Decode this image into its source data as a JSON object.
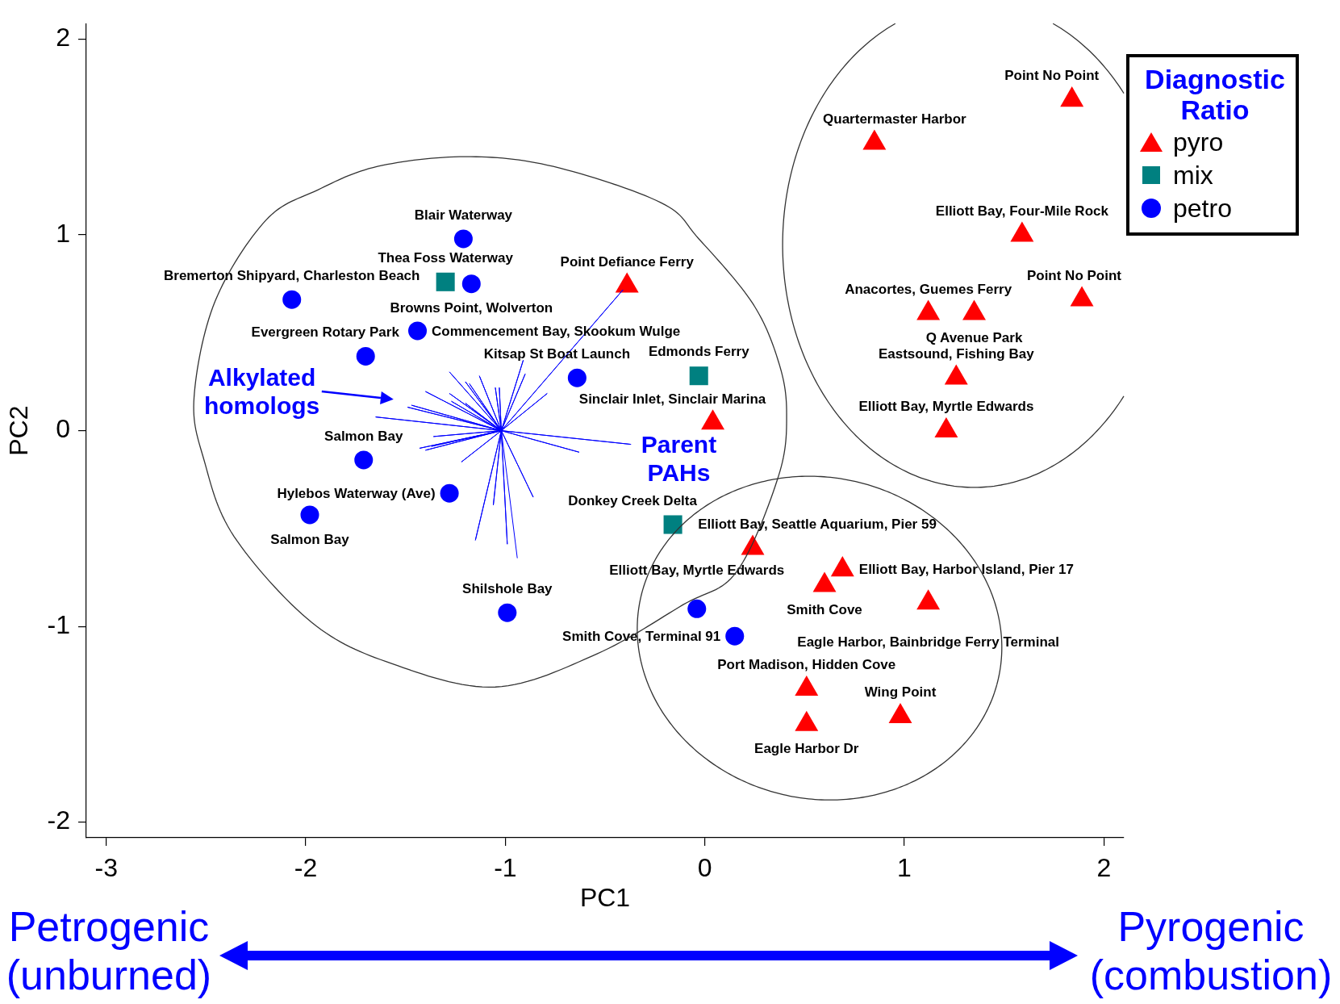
{
  "chart_data": {
    "type": "scatter",
    "xlabel": "PC1",
    "ylabel": "PC2",
    "legend": "top right",
    "legend_title": "Diagnostic Ratio",
    "xlim": [
      -3.1,
      2.1
    ],
    "ylim": [
      -2.08,
      2.08
    ],
    "xticks": [
      -3,
      -2,
      -1,
      0,
      1,
      2
    ],
    "yticks": [
      -2,
      -1,
      0,
      1,
      2
    ],
    "series": [
      {
        "name": "pyro",
        "color": "#ff0000",
        "marker": "triangle",
        "x": [
          1.84,
          0.85,
          1.59,
          1.89,
          1.12,
          1.35,
          1.26,
          1.21,
          -0.39,
          0.04,
          0.24,
          0.69,
          0.6,
          1.12,
          0.51,
          0.51,
          0.98
        ],
        "values": [
          1.69,
          1.47,
          1.0,
          0.67,
          0.6,
          0.6,
          0.27,
          0.0,
          0.74,
          0.04,
          -0.6,
          -0.71,
          -0.79,
          -0.88,
          -1.32,
          -1.5,
          -1.46
        ]
      },
      {
        "name": "mix",
        "color": "#008080",
        "marker": "square",
        "x": [
          -1.3,
          -0.03,
          -0.16
        ],
        "values": [
          0.76,
          0.28,
          -0.48
        ]
      },
      {
        "name": "petro",
        "color": "#0000ff",
        "marker": "circle",
        "x": [
          -1.21,
          -1.17,
          -2.07,
          -1.44,
          -1.7,
          -0.64,
          -1.71,
          -1.28,
          -1.98,
          -0.99,
          -0.04,
          0.15
        ],
        "values": [
          0.98,
          0.75,
          0.67,
          0.51,
          0.38,
          0.27,
          -0.15,
          -0.32,
          -0.43,
          -0.93,
          -0.91,
          -1.05
        ]
      },
      {
        "type": "line",
        "color": "#0000ff",
        "marker": "none",
        "x": [
          -1.02,
          -0.91,
          -1.02,
          -0.9,
          -1.02,
          -0.41,
          -1.02,
          -0.79,
          -1.02,
          -1.28,
          -1.02,
          -1.2,
          -1.02,
          -1.18,
          -1.02,
          -1.13,
          -1.02,
          -1.05,
          -1.02,
          -1.03,
          -1.02,
          -1.4,
          -1.02,
          -1.28,
          -1.02,
          -1.27,
          -1.02,
          -1.2,
          -1.02,
          -1.47,
          -1.02,
          -1.49,
          -1.02,
          -1.65,
          -1.02,
          -1.36,
          -1.02,
          -1.43,
          -1.02,
          -1.4,
          -1.02,
          -1.37,
          -1.02,
          -1.22,
          -1.02,
          -0.37,
          -1.02,
          -0.63,
          -1.02,
          -0.86,
          -1.02,
          -1.06,
          -1.02,
          -1.15,
          -1.02,
          -0.99,
          -1.02,
          -0.94
        ],
        "values": [
          0,
          0.36,
          0,
          0.29,
          0,
          0.72,
          0,
          0.19,
          0,
          0.3,
          0,
          0.25,
          0,
          0.24,
          0,
          0.28,
          0,
          0.22,
          0,
          0.22,
          0,
          0.2,
          0,
          0.19,
          0,
          0.15,
          0,
          0.14,
          0,
          0.13,
          0,
          0.12,
          0,
          0.07,
          0,
          -0.03,
          0,
          -0.09,
          0,
          -0.1,
          0,
          -0.08,
          0,
          -0.16,
          0,
          -0.07,
          0,
          -0.11,
          0,
          -0.34,
          0,
          -0.38,
          0,
          -0.56,
          0,
          -0.58,
          0,
          -0.65
        ]
      }
    ],
    "annotations": [
      {
        "text": "Point No Point",
        "x": 1.84,
        "y": 1.69
      },
      {
        "text": "Quartermaster Harbor",
        "x": 0.85,
        "y": 1.47
      },
      {
        "text": "Elliott Bay, Four-Mile Rock",
        "x": 1.59,
        "y": 1.0
      },
      {
        "text": "Point No Point",
        "x": 1.89,
        "y": 0.67
      },
      {
        "text": "Anacortes, Guemes Ferry",
        "x": 1.12,
        "y": 0.6
      },
      {
        "text": "Q Avenue Park",
        "x": 1.35,
        "y": 0.6
      },
      {
        "text": "Eastsound, Fishing Bay",
        "x": 1.26,
        "y": 0.27
      },
      {
        "text": "Elliott Bay, Myrtle Edwards",
        "x": 1.21,
        "y": 0.0
      },
      {
        "text": "Point Defiance Ferry",
        "x": -0.39,
        "y": 0.74
      },
      {
        "text": "Sinclair Inlet, Sinclair Marina",
        "x": 0.04,
        "y": 0.04
      },
      {
        "text": "Elliott Bay, Seattle Aquarium, Pier 59",
        "x": 0.24,
        "y": -0.6
      },
      {
        "text": "Elliott Bay, Harbor Island, Pier 17",
        "x": 0.69,
        "y": -0.71
      },
      {
        "text": "Smith Cove",
        "x": 0.6,
        "y": -0.79
      },
      {
        "text": "Eagle Harbor, Bainbridge Ferry Terminal",
        "x": 1.12,
        "y": -0.88
      },
      {
        "text": "Port Madison, Hidden Cove",
        "x": 0.51,
        "y": -1.32
      },
      {
        "text": "Eagle Harbor Dr",
        "x": 0.51,
        "y": -1.5
      },
      {
        "text": "Wing Point",
        "x": 0.98,
        "y": -1.46
      },
      {
        "text": "Thea Foss Waterway",
        "x": -1.3,
        "y": 0.76
      },
      {
        "text": "Edmonds Ferry",
        "x": -0.03,
        "y": 0.28
      },
      {
        "text": "Donkey Creek Delta",
        "x": -0.16,
        "y": -0.48
      },
      {
        "text": "Blair Waterway",
        "x": -1.21,
        "y": 0.98
      },
      {
        "text": "Browns Point, Wolverton",
        "x": -1.17,
        "y": 0.75
      },
      {
        "text": "Bremerton Shipyard, Charleston Beach",
        "x": -2.07,
        "y": 0.67
      },
      {
        "text": "Commencement Bay, Skookum Wulge",
        "x": -1.44,
        "y": 0.51
      },
      {
        "text": "Evergreen Rotary Park",
        "x": -1.7,
        "y": 0.38
      },
      {
        "text": "Kitsap St Boat Launch",
        "x": -0.64,
        "y": 0.27
      },
      {
        "text": "Salmon Bay",
        "x": -1.71,
        "y": -0.15
      },
      {
        "text": "Hylebos Waterway (Ave)",
        "x": -1.28,
        "y": -0.32
      },
      {
        "text": "Salmon Bay",
        "x": -1.98,
        "y": -0.43
      },
      {
        "text": "Shilshole Bay",
        "x": -0.99,
        "y": -0.93
      },
      {
        "text": "Elliott Bay, Myrtle Edwards",
        "x": -0.04,
        "y": -0.91
      },
      {
        "text": "Smith Cove, Terminal 91",
        "x": 0.15,
        "y": -1.05
      },
      "Alkylated homologs",
      "Parent PAHs",
      "Petrogenic (unburned)",
      "Pyrogenic (combustion)"
    ]
  }
}
